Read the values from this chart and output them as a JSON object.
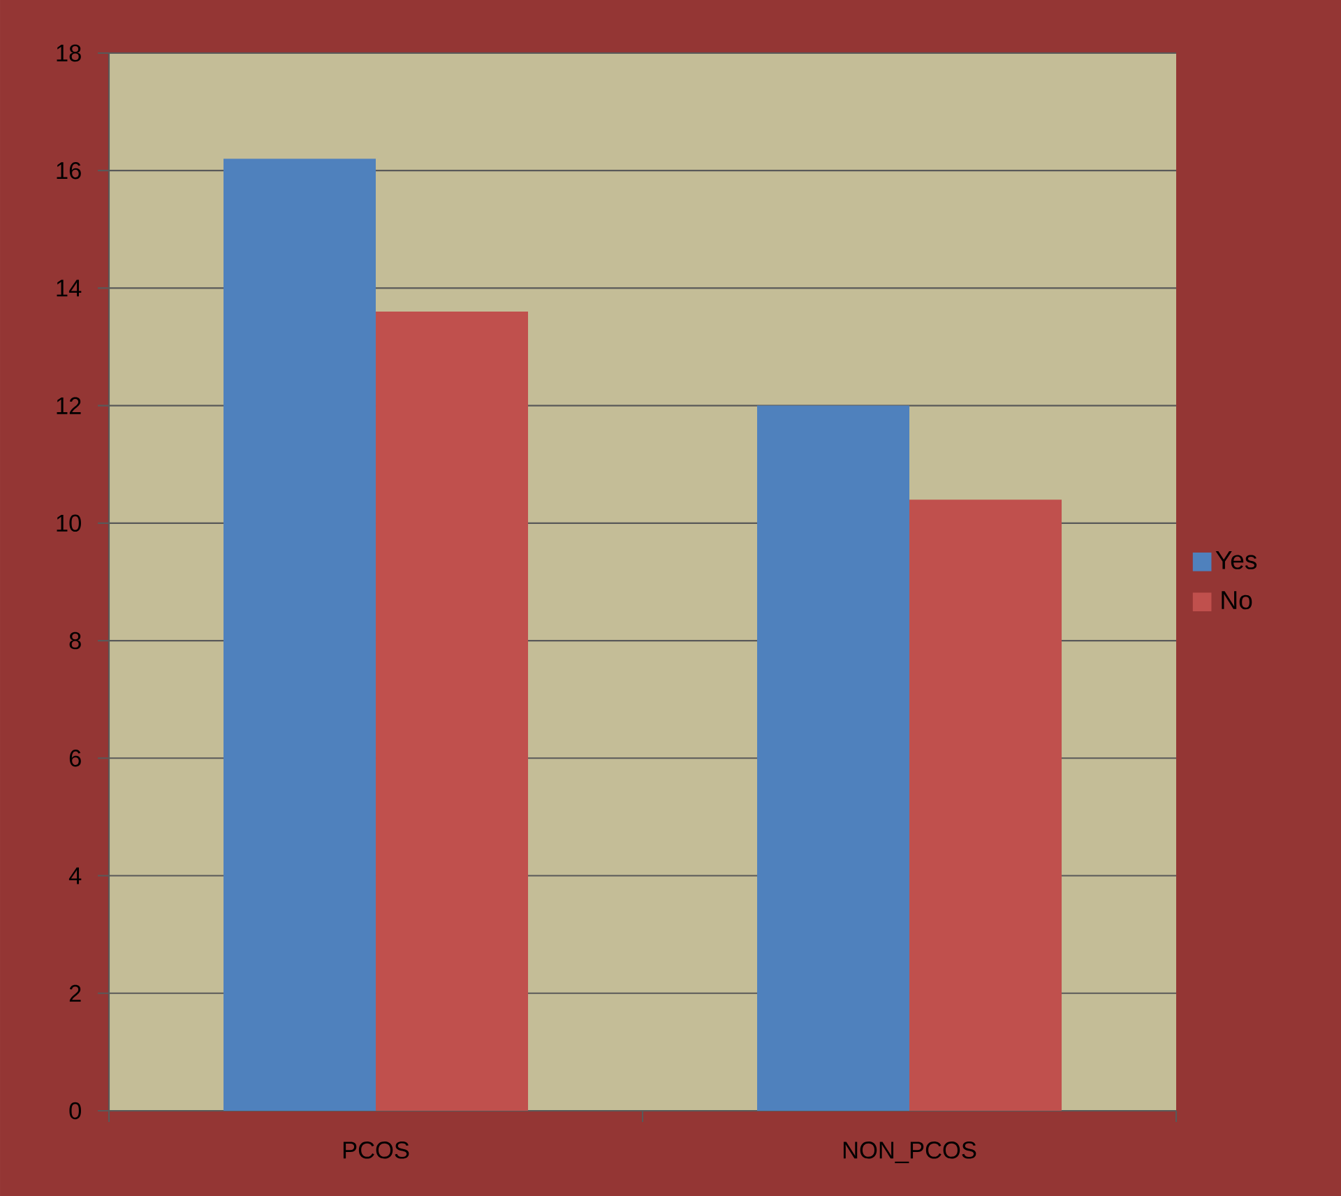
{
  "chart_data": {
    "type": "bar",
    "categories": [
      "PCOS",
      "NON_PCOS"
    ],
    "series": [
      {
        "name": "Yes",
        "color": "#4f81bd",
        "values": [
          16.2,
          12.0
        ]
      },
      {
        "name": "No",
        "color": "#c0504d",
        "values": [
          13.6,
          10.4
        ]
      }
    ],
    "ylim": [
      0,
      18
    ],
    "yticks": [
      0,
      2,
      4,
      6,
      8,
      10,
      12,
      14,
      16,
      18
    ],
    "grid": "y",
    "legend": "right"
  }
}
